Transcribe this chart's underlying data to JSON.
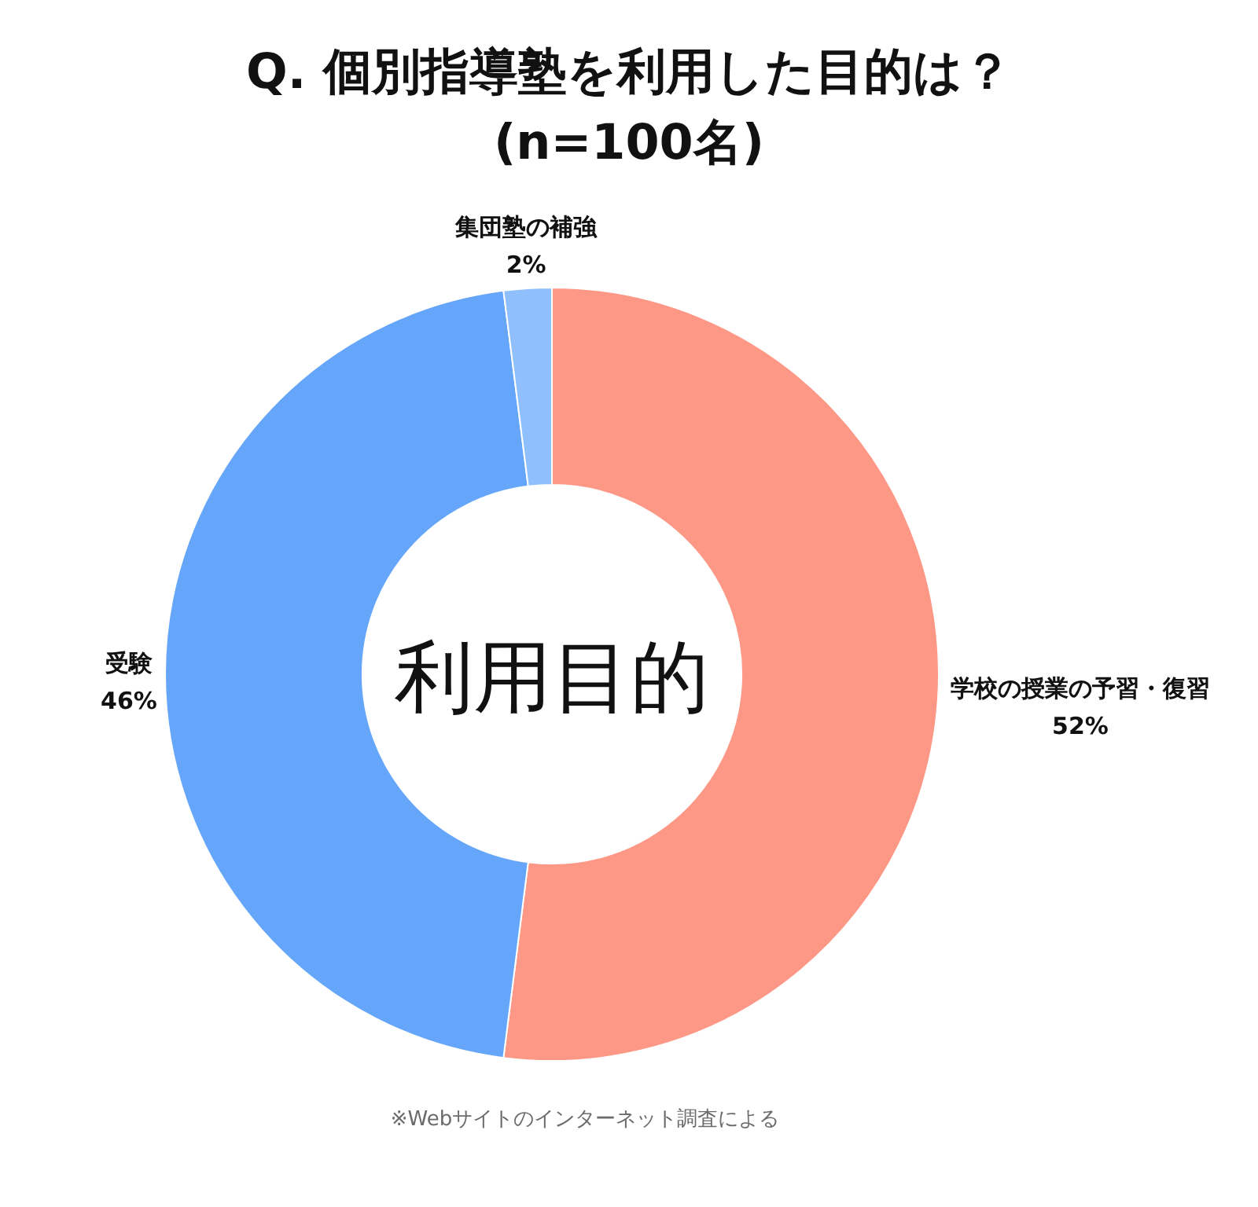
{
  "chart_data": {
    "type": "donut",
    "title": "Q. 個別指導塾を利用した目的は？",
    "subtitle": "(n=100名)",
    "categories": [
      "学校の授業の予習・復習",
      "受験",
      "集団塾の補強"
    ],
    "values": [
      52,
      46,
      2
    ],
    "value_labels": [
      "52%",
      "46%",
      "2%"
    ],
    "colors": [
      "#fe9886",
      "#66a6fa",
      "#8fc0fd"
    ],
    "annotations": [
      "利用目的",
      "※Webサイトのインターネット調査による"
    ]
  }
}
